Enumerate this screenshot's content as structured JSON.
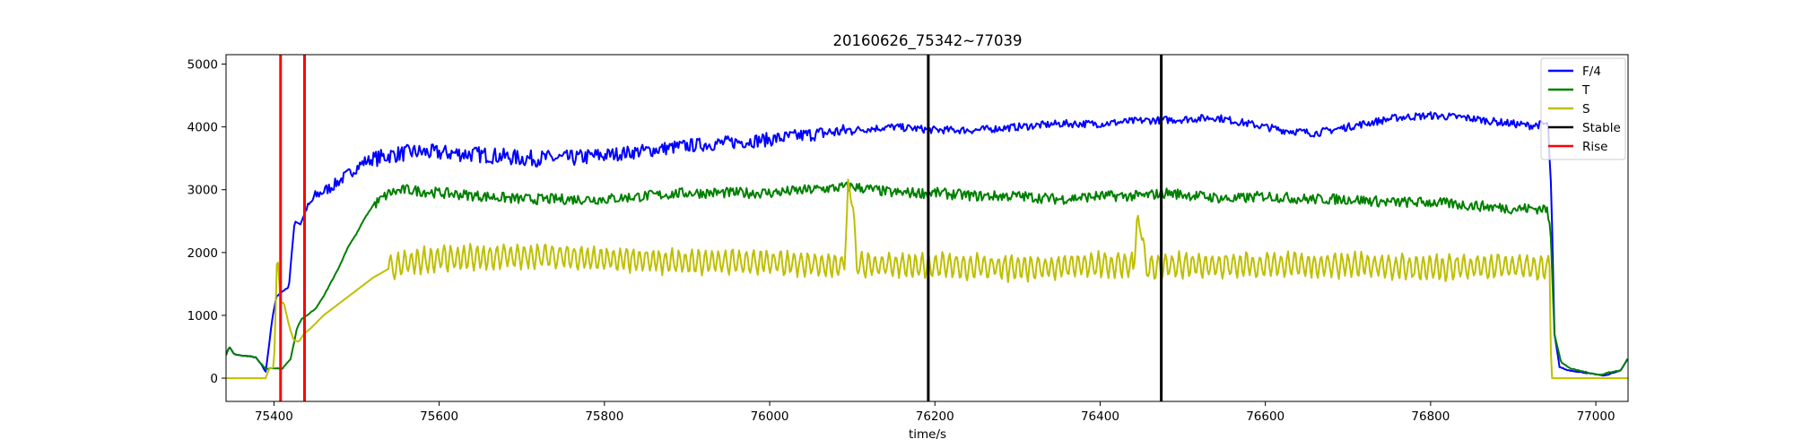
{
  "chart_data": {
    "type": "line",
    "title": "20160626_75342~77039",
    "xlabel": "time/s",
    "ylabel": "",
    "xlim": [
      75342,
      77039
    ],
    "ylim": [
      -370,
      5150
    ],
    "xticks": [
      75400,
      75600,
      75800,
      76000,
      76200,
      76400,
      76600,
      76800,
      77000
    ],
    "yticks": [
      0,
      1000,
      2000,
      3000,
      4000,
      5000
    ],
    "grid": false,
    "legend_position": "upper right",
    "series": [
      {
        "name": "F/4",
        "color": "#0000ff",
        "style": "noisy",
        "points": [
          [
            75342,
            370
          ],
          [
            75346,
            500
          ],
          [
            75352,
            380
          ],
          [
            75360,
            360
          ],
          [
            75370,
            350
          ],
          [
            75378,
            330
          ],
          [
            75385,
            210
          ],
          [
            75390,
            100
          ],
          [
            75398,
            950
          ],
          [
            75403,
            1300
          ],
          [
            75410,
            1380
          ],
          [
            75418,
            1450
          ],
          [
            75425,
            2500
          ],
          [
            75432,
            2450
          ],
          [
            75438,
            2650
          ],
          [
            75450,
            2900
          ],
          [
            75470,
            3050
          ],
          [
            75490,
            3250
          ],
          [
            75510,
            3450
          ],
          [
            75540,
            3550
          ],
          [
            75570,
            3600
          ],
          [
            75620,
            3580
          ],
          [
            75660,
            3550
          ],
          [
            75700,
            3500
          ],
          [
            75760,
            3500
          ],
          [
            75800,
            3550
          ],
          [
            75850,
            3620
          ],
          [
            75900,
            3700
          ],
          [
            75950,
            3750
          ],
          [
            76000,
            3800
          ],
          [
            76050,
            3880
          ],
          [
            76100,
            3950
          ],
          [
            76150,
            4000
          ],
          [
            76200,
            3950
          ],
          [
            76250,
            3950
          ],
          [
            76300,
            4000
          ],
          [
            76350,
            4050
          ],
          [
            76400,
            4050
          ],
          [
            76450,
            4100
          ],
          [
            76500,
            4120
          ],
          [
            76540,
            4150
          ],
          [
            76580,
            4050
          ],
          [
            76620,
            3950
          ],
          [
            76660,
            3900
          ],
          [
            76700,
            4000
          ],
          [
            76760,
            4150
          ],
          [
            76800,
            4180
          ],
          [
            76840,
            4150
          ],
          [
            76880,
            4080
          ],
          [
            76920,
            4020
          ],
          [
            76942,
            4050
          ],
          [
            76946,
            3000
          ],
          [
            76950,
            700
          ],
          [
            76956,
            180
          ],
          [
            76965,
            130
          ],
          [
            76980,
            100
          ],
          [
            77000,
            60
          ],
          [
            77010,
            40
          ],
          [
            77020,
            80
          ],
          [
            77030,
            120
          ],
          [
            77039,
            320
          ]
        ]
      },
      {
        "name": "T",
        "color": "#008000",
        "style": "noisy",
        "points": [
          [
            75342,
            370
          ],
          [
            75346,
            500
          ],
          [
            75352,
            380
          ],
          [
            75360,
            360
          ],
          [
            75370,
            350
          ],
          [
            75378,
            330
          ],
          [
            75385,
            220
          ],
          [
            75390,
            150
          ],
          [
            75400,
            160
          ],
          [
            75410,
            150
          ],
          [
            75420,
            300
          ],
          [
            75428,
            800
          ],
          [
            75434,
            950
          ],
          [
            75440,
            1000
          ],
          [
            75450,
            1100
          ],
          [
            75460,
            1300
          ],
          [
            75470,
            1550
          ],
          [
            75480,
            1800
          ],
          [
            75490,
            2100
          ],
          [
            75500,
            2300
          ],
          [
            75510,
            2550
          ],
          [
            75520,
            2750
          ],
          [
            75540,
            2950
          ],
          [
            75560,
            3000
          ],
          [
            75600,
            2950
          ],
          [
            75650,
            2900
          ],
          [
            75700,
            2850
          ],
          [
            75750,
            2850
          ],
          [
            75800,
            2850
          ],
          [
            75850,
            2900
          ],
          [
            75900,
            2950
          ],
          [
            75950,
            2950
          ],
          [
            76000,
            2950
          ],
          [
            76050,
            3000
          ],
          [
            76100,
            3050
          ],
          [
            76150,
            2950
          ],
          [
            76200,
            2950
          ],
          [
            76250,
            2900
          ],
          [
            76300,
            2900
          ],
          [
            76350,
            2850
          ],
          [
            76400,
            2900
          ],
          [
            76450,
            2900
          ],
          [
            76480,
            2950
          ],
          [
            76520,
            2900
          ],
          [
            76560,
            2850
          ],
          [
            76600,
            2900
          ],
          [
            76650,
            2850
          ],
          [
            76700,
            2850
          ],
          [
            76750,
            2800
          ],
          [
            76800,
            2800
          ],
          [
            76850,
            2750
          ],
          [
            76900,
            2700
          ],
          [
            76940,
            2700
          ],
          [
            76945,
            2400
          ],
          [
            76950,
            700
          ],
          [
            76958,
            250
          ],
          [
            76970,
            150
          ],
          [
            76990,
            90
          ],
          [
            77005,
            50
          ],
          [
            77015,
            90
          ],
          [
            77030,
            120
          ],
          [
            77039,
            320
          ]
        ]
      },
      {
        "name": "S",
        "color": "#bfbf00",
        "style": "oscillating",
        "points": [
          [
            75342,
            0
          ],
          [
            75360,
            0
          ],
          [
            75380,
            0
          ],
          [
            75390,
            0
          ],
          [
            75394,
            150
          ],
          [
            75400,
            170
          ],
          [
            75404,
            2050
          ],
          [
            75408,
            1200
          ],
          [
            75412,
            1200
          ],
          [
            75418,
            850
          ],
          [
            75424,
            600
          ],
          [
            75430,
            580
          ],
          [
            75436,
            700
          ],
          [
            75445,
            800
          ],
          [
            75460,
            1000
          ],
          [
            75480,
            1200
          ],
          [
            75500,
            1400
          ],
          [
            75520,
            1600
          ],
          [
            75540,
            1750
          ],
          [
            75560,
            1850
          ],
          [
            75600,
            1900
          ],
          [
            75700,
            1950
          ],
          [
            75800,
            1900
          ],
          [
            75900,
            1850
          ],
          [
            76000,
            1850
          ],
          [
            76090,
            1800
          ],
          [
            76095,
            2950
          ],
          [
            76100,
            2950
          ],
          [
            76105,
            1800
          ],
          [
            76200,
            1800
          ],
          [
            76300,
            1750
          ],
          [
            76400,
            1800
          ],
          [
            76440,
            1800
          ],
          [
            76445,
            2450
          ],
          [
            76450,
            2450
          ],
          [
            76455,
            1750
          ],
          [
            76500,
            1800
          ],
          [
            76600,
            1800
          ],
          [
            76700,
            1800
          ],
          [
            76800,
            1750
          ],
          [
            76900,
            1800
          ],
          [
            76944,
            1750
          ],
          [
            76946,
            0
          ],
          [
            77039,
            0
          ]
        ]
      }
    ],
    "vlines": [
      {
        "group": "Stable",
        "color": "#000000",
        "x": 76192
      },
      {
        "group": "Stable",
        "color": "#000000",
        "x": 76474
      },
      {
        "group": "Rise",
        "color": "#ff0000",
        "x": 75408
      },
      {
        "group": "Rise",
        "color": "#ff0000",
        "x": 75437
      }
    ],
    "legend": [
      {
        "name": "F/4",
        "color": "#0000ff"
      },
      {
        "name": "T",
        "color": "#008000"
      },
      {
        "name": "S",
        "color": "#bfbf00"
      },
      {
        "name": "Stable",
        "color": "#000000"
      },
      {
        "name": "Rise",
        "color": "#ff0000"
      }
    ]
  }
}
